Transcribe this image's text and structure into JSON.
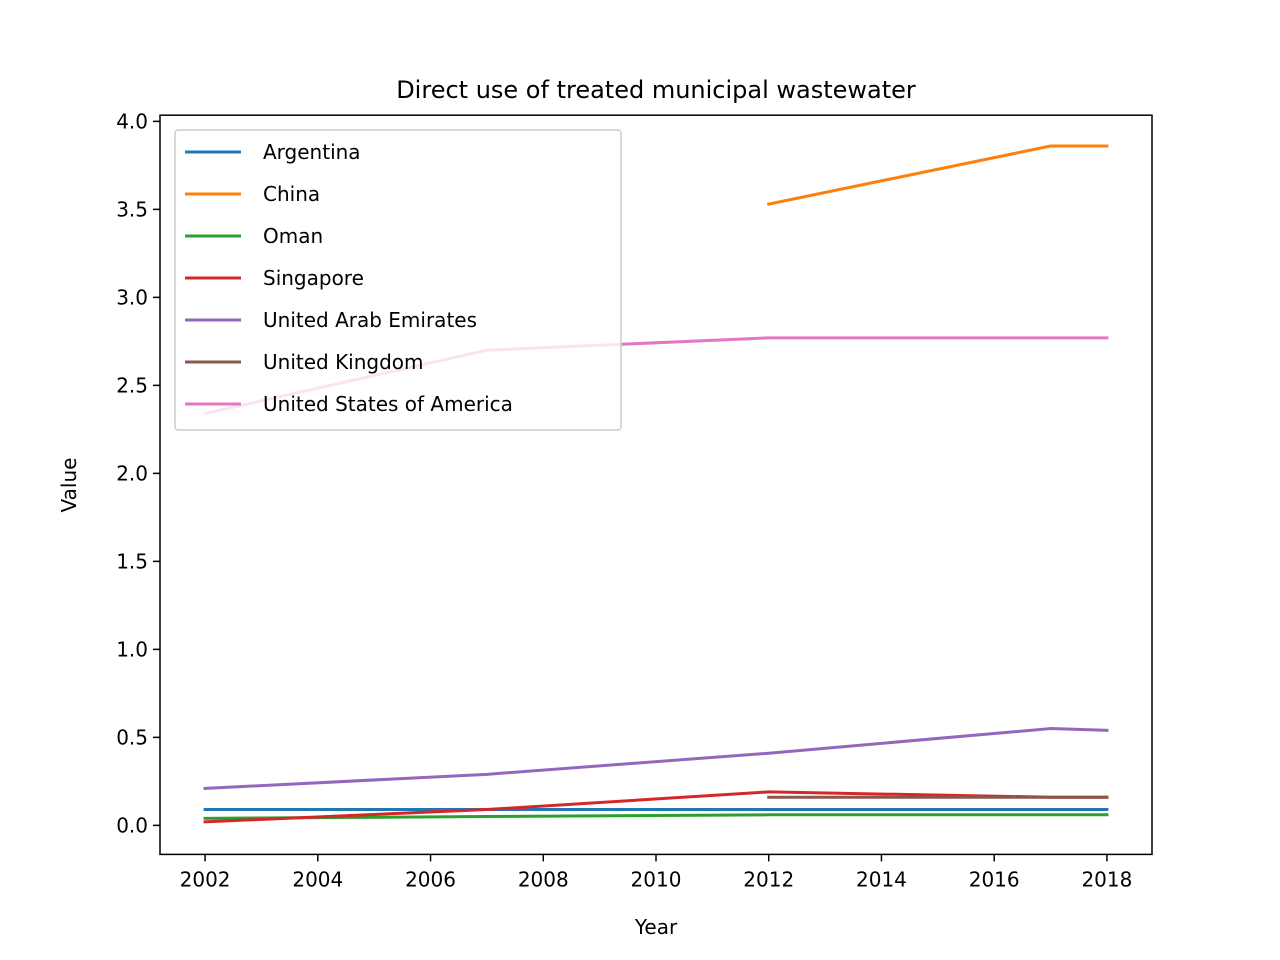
{
  "chart_data": {
    "type": "line",
    "title": "Direct use of treated municipal wastewater",
    "xlabel": "Year",
    "ylabel": "Value",
    "xlim": [
      2001.2,
      2018.8
    ],
    "ylim": [
      -0.165,
      4.035
    ],
    "xticks": [
      2002,
      2004,
      2006,
      2008,
      2010,
      2012,
      2014,
      2016,
      2018
    ],
    "xtick_labels": [
      "2002",
      "2004",
      "2006",
      "2008",
      "2010",
      "2012",
      "2014",
      "2016",
      "2018"
    ],
    "yticks": [
      0.0,
      0.5,
      1.0,
      1.5,
      2.0,
      2.5,
      3.0,
      3.5,
      4.0
    ],
    "ytick_labels": [
      "0.0",
      "0.5",
      "1.0",
      "1.5",
      "2.0",
      "2.5",
      "3.0",
      "3.5",
      "4.0"
    ],
    "grid": false,
    "legend_position": "top-left",
    "series": [
      {
        "name": "Argentina",
        "color": "#1f77b4",
        "points": [
          [
            2002,
            0.09
          ],
          [
            2007,
            0.09
          ],
          [
            2012,
            0.09
          ],
          [
            2017,
            0.09
          ],
          [
            2018,
            0.09
          ]
        ]
      },
      {
        "name": "China",
        "color": "#ff7f0e",
        "points": [
          [
            2012,
            3.53
          ],
          [
            2017,
            3.86
          ],
          [
            2018,
            3.86
          ]
        ]
      },
      {
        "name": "Oman",
        "color": "#2ca02c",
        "points": [
          [
            2002,
            0.04
          ],
          [
            2007,
            0.05
          ],
          [
            2012,
            0.06
          ],
          [
            2017,
            0.06
          ],
          [
            2018,
            0.06
          ]
        ]
      },
      {
        "name": "Singapore",
        "color": "#d62728",
        "points": [
          [
            2002,
            0.02
          ],
          [
            2007,
            0.09
          ],
          [
            2012,
            0.19
          ],
          [
            2017,
            0.16
          ],
          [
            2018,
            0.16
          ]
        ]
      },
      {
        "name": "United Arab Emirates",
        "color": "#9467bd",
        "points": [
          [
            2002,
            0.21
          ],
          [
            2007,
            0.29
          ],
          [
            2012,
            0.41
          ],
          [
            2017,
            0.55
          ],
          [
            2018,
            0.54
          ]
        ]
      },
      {
        "name": "United Kingdom",
        "color": "#8c564b",
        "points": [
          [
            2012,
            0.16
          ],
          [
            2017,
            0.16
          ],
          [
            2018,
            0.16
          ]
        ]
      },
      {
        "name": "United States of America",
        "color": "#e377c2",
        "points": [
          [
            2002,
            2.34
          ],
          [
            2007,
            2.7
          ],
          [
            2012,
            2.77
          ],
          [
            2017,
            2.77
          ],
          [
            2018,
            2.77
          ]
        ]
      }
    ]
  }
}
